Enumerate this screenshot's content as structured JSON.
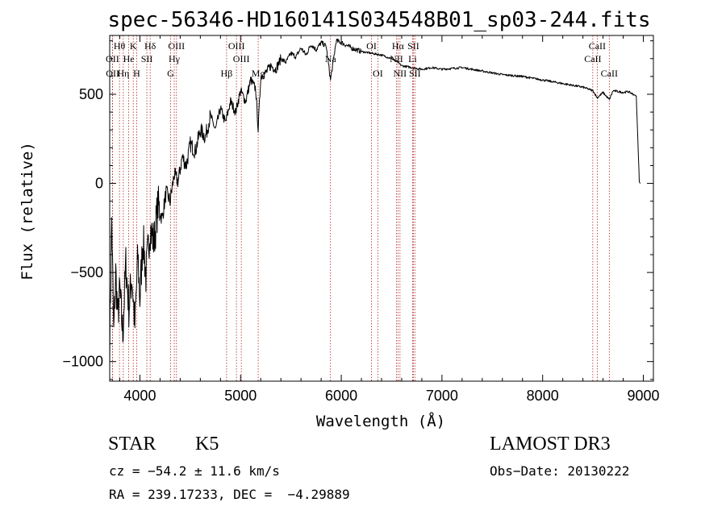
{
  "chart_data": {
    "type": "line",
    "title": "spec-56346-HD160141S034548B01_sp03-244.fits",
    "xlabel": "Wavelength (Å)",
    "ylabel": "Flux (relative)",
    "xlim": [
      3700,
      9100
    ],
    "ylim": [
      -1110,
      830
    ],
    "x_ticks": [
      4000,
      5000,
      6000,
      7000,
      8000,
      9000
    ],
    "y_ticks": [
      -1000,
      -500,
      0,
      500
    ],
    "series": [
      {
        "name": "spectrum",
        "x": [
          3700,
          3720,
          3740,
          3760,
          3780,
          3800,
          3830,
          3860,
          3890,
          3920,
          3950,
          3980,
          4000,
          4030,
          4060,
          4100,
          4140,
          4180,
          4220,
          4260,
          4300,
          4340,
          4380,
          4420,
          4460,
          4500,
          4550,
          4600,
          4650,
          4700,
          4750,
          4800,
          4850,
          4900,
          4950,
          5000,
          5050,
          5100,
          5150,
          5175,
          5200,
          5250,
          5300,
          5350,
          5400,
          5450,
          5500,
          5550,
          5600,
          5650,
          5700,
          5750,
          5800,
          5850,
          5893,
          5950,
          6000,
          6100,
          6200,
          6300,
          6400,
          6500,
          6560,
          6600,
          6700,
          6800,
          6900,
          7000,
          7200,
          7400,
          7600,
          7800,
          8000,
          8200,
          8400,
          8500,
          8542,
          8600,
          8662,
          8700,
          8800,
          8850,
          8900,
          8930,
          8945,
          8960,
          8970
        ],
        "y": [
          -900,
          -200,
          -850,
          -500,
          -750,
          -600,
          -850,
          -450,
          -700,
          -520,
          -800,
          -400,
          -650,
          -300,
          -520,
          -250,
          -330,
          -120,
          -200,
          -50,
          -100,
          50,
          10,
          150,
          100,
          220,
          180,
          300,
          260,
          380,
          300,
          420,
          340,
          460,
          400,
          520,
          460,
          580,
          530,
          300,
          600,
          620,
          660,
          640,
          700,
          680,
          730,
          710,
          760,
          720,
          780,
          750,
          790,
          770,
          580,
          800,
          790,
          760,
          740,
          730,
          720,
          700,
          680,
          660,
          650,
          640,
          650,
          640,
          650,
          630,
          610,
          600,
          580,
          560,
          540,
          520,
          480,
          510,
          470,
          520,
          510,
          515,
          500,
          490,
          250,
          10,
          0
        ]
      }
    ],
    "lines": [
      {
        "label": "Hθ",
        "x": 3797,
        "row": 1
      },
      {
        "label": "OII",
        "x": 3727,
        "row": 2
      },
      {
        "label": "OII",
        "x": 3729,
        "row": 3
      },
      {
        "label": "He",
        "x": 3889,
        "row": 2
      },
      {
        "label": "Hη",
        "x": 3835,
        "row": 3
      },
      {
        "label": "K",
        "x": 3934,
        "row": 1
      },
      {
        "label": "SII",
        "x": 4069,
        "row": 2
      },
      {
        "label": "H",
        "x": 3968,
        "row": 3
      },
      {
        "label": "Hδ",
        "x": 4102,
        "row": 1
      },
      {
        "label": "OIII",
        "x": 4363,
        "row": 1
      },
      {
        "label": "Hγ",
        "x": 4341,
        "row": 2
      },
      {
        "label": "G",
        "x": 4305,
        "row": 3
      },
      {
        "label": "OIII",
        "x": 4959,
        "row": 1
      },
      {
        "label": "OIII",
        "x": 5007,
        "row": 2
      },
      {
        "label": "Hβ",
        "x": 4861,
        "row": 3
      },
      {
        "label": "Mg",
        "x": 5175,
        "row": 3
      },
      {
        "label": "Na",
        "x": 5893,
        "row": 2
      },
      {
        "label": "OI",
        "x": 6300,
        "row": 1
      },
      {
        "label": "OI",
        "x": 6363,
        "row": 3
      },
      {
        "label": "Hα",
        "x": 6563,
        "row": 1
      },
      {
        "label": "SII",
        "x": 6716,
        "row": 1
      },
      {
        "label": "NII",
        "x": 6548,
        "row": 2
      },
      {
        "label": "Li",
        "x": 6708,
        "row": 2
      },
      {
        "label": "NII",
        "x": 6583,
        "row": 3
      },
      {
        "label": "SII",
        "x": 6731,
        "row": 3
      },
      {
        "label": "CaII",
        "x": 8542,
        "row": 1
      },
      {
        "label": "CaII",
        "x": 8498,
        "row": 2
      },
      {
        "label": "CaII",
        "x": 8662,
        "row": 3
      }
    ]
  },
  "info": {
    "class_label": "STAR",
    "subclass_label": "K5",
    "survey": "LAMOST DR3",
    "cz_line": "cz = −54.2 ± 11.6 km/s",
    "obs_date": "Obs−Date: 20130222",
    "coords": "RA = 239.17233, DEC =  −4.29889"
  }
}
